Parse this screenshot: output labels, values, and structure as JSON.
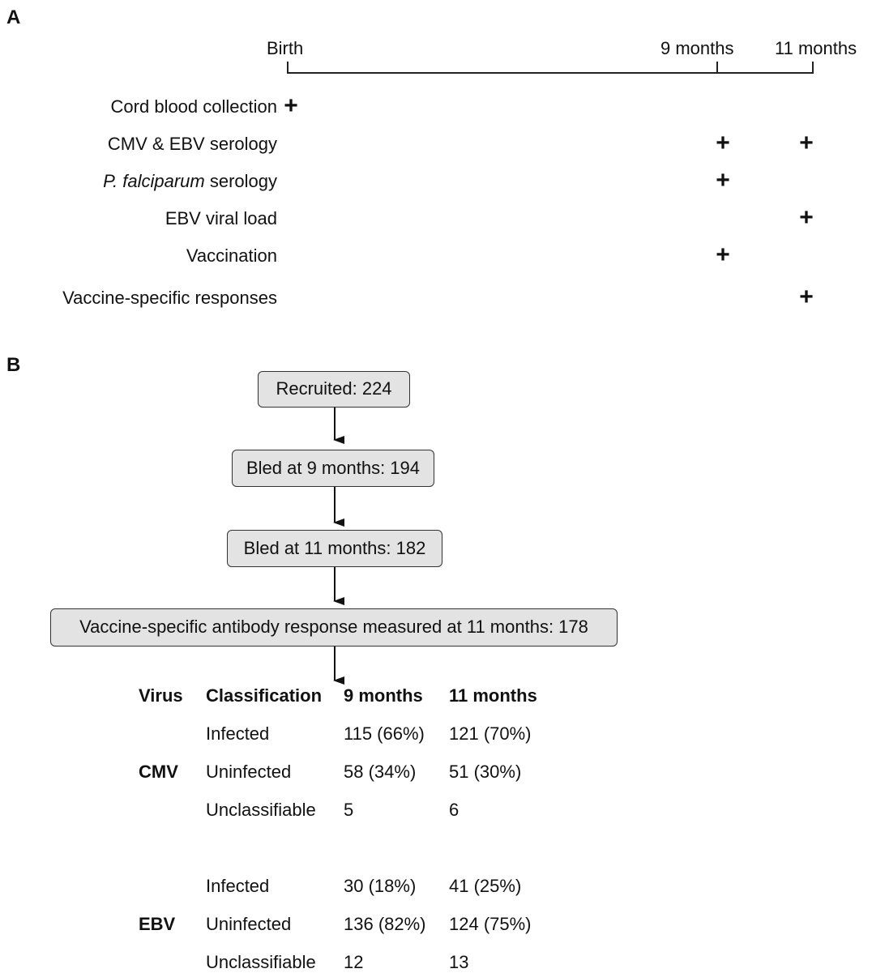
{
  "panel_a": {
    "label": "A",
    "timeline": {
      "birth": "Birth",
      "nine_months": "9 months",
      "eleven_months": "11 months"
    },
    "rows": [
      {
        "label": "Cord blood collection",
        "marks": [
          "birth"
        ]
      },
      {
        "label": "CMV & EBV serology",
        "marks": [
          "9 months",
          "11 months"
        ]
      },
      {
        "label_italic": "P. falciparum",
        "label": " serology",
        "marks": [
          "9 months"
        ]
      },
      {
        "label": "EBV viral load",
        "marks": [
          "11 months"
        ]
      },
      {
        "label": "Vaccination",
        "marks": [
          "9 months"
        ]
      },
      {
        "label": "Vaccine-specific responses",
        "marks": [
          "11 months"
        ]
      }
    ],
    "mark_symbol": "+"
  },
  "panel_b": {
    "label": "B",
    "flow": [
      "Recruited: 224",
      "Bled at 9 months: 194",
      "Bled at 11 months: 182",
      "Vaccine-specific antibody response measured at 11 months: 178"
    ],
    "table": {
      "headers": [
        "Virus",
        "Classification",
        "9 months",
        "11 months"
      ],
      "groups": [
        {
          "virus": "CMV",
          "rows": [
            {
              "classification": "Infected",
              "m9": "115 (66%)",
              "m11": "121 (70%)"
            },
            {
              "classification": "Uninfected",
              "m9": "58 (34%)",
              "m11": "51 (30%)"
            },
            {
              "classification": "Unclassifiable",
              "m9": "5",
              "m11": "6"
            }
          ]
        },
        {
          "virus": "EBV",
          "rows": [
            {
              "classification": "Infected",
              "m9": "30 (18%)",
              "m11": "41 (25%)"
            },
            {
              "classification": "Uninfected",
              "m9": "136 (82%)",
              "m11": "124 (75%)"
            },
            {
              "classification": "Unclassifiable",
              "m9": "12",
              "m11": "13"
            }
          ]
        }
      ]
    }
  }
}
